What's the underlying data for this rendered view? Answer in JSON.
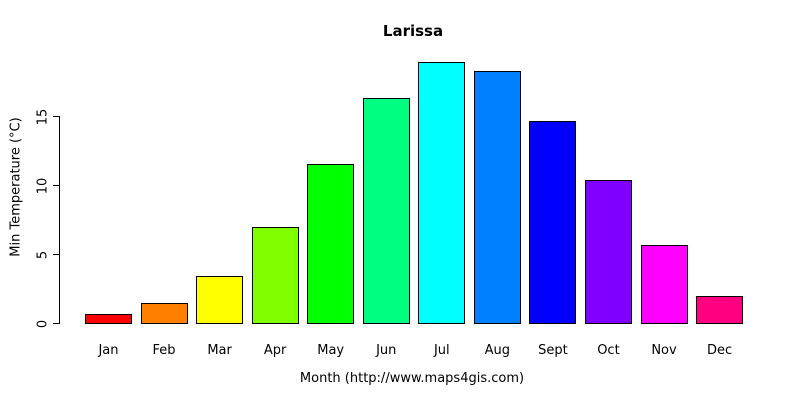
{
  "colors": {
    "background": "#FFFFFF",
    "text": "#000000",
    "bar_border": "#000000",
    "axis": "#000000"
  },
  "chart_data": {
    "type": "bar",
    "title": "Larissa",
    "xlabel": "Month (http://www.maps4gis.com)",
    "ylabel": "Min Temperature (°C)",
    "categories": [
      "Jan",
      "Feb",
      "Mar",
      "Apr",
      "May",
      "Jun",
      "Jul",
      "Aug",
      "Sept",
      "Oct",
      "Nov",
      "Dec"
    ],
    "values": [
      0.7,
      1.5,
      3.5,
      7.0,
      11.6,
      16.4,
      19.0,
      18.3,
      14.7,
      10.4,
      5.7,
      2.0
    ],
    "bar_colors": [
      "#FF0000",
      "#FF8000",
      "#FFFF00",
      "#80FF00",
      "#00FF00",
      "#00FF80",
      "#00FFFF",
      "#0080FF",
      "#0000FF",
      "#8000FF",
      "#FF00FF",
      "#FF0080"
    ],
    "yticks": [
      0,
      5,
      10,
      15
    ],
    "ylim": [
      0,
      19.0
    ],
    "grid": false,
    "legend": null
  }
}
